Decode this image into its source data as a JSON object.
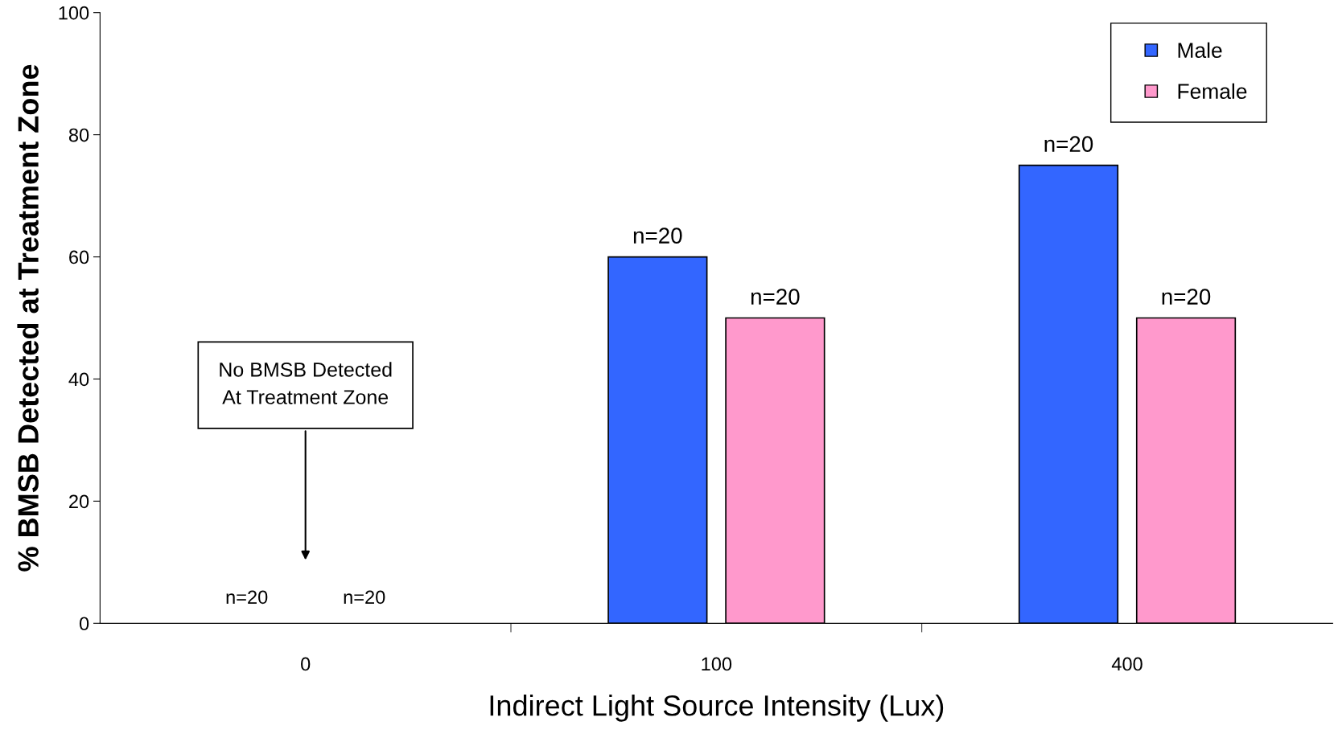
{
  "chart_data": {
    "type": "bar",
    "xlabel": "Indirect Light Source Intensity (Lux)",
    "ylabel": "% BMSB Detected at Treatment Zone",
    "categories": [
      "0",
      "100",
      "400"
    ],
    "series": [
      {
        "name": "Male",
        "color": "#3366ff",
        "values": [
          0,
          60,
          75
        ]
      },
      {
        "name": "Female",
        "color": "#ff99cc",
        "values": [
          0,
          50,
          50
        ]
      }
    ],
    "ylim": [
      0,
      100
    ],
    "yticks": [
      0,
      20,
      40,
      60,
      80,
      100
    ],
    "annotations": [
      "No BMSB Detected\nAt Treatment Zone",
      "n=20",
      "n=20",
      "n=20",
      "n=20",
      "n=20",
      "n=20"
    ],
    "grid": false,
    "legend": "top right"
  }
}
